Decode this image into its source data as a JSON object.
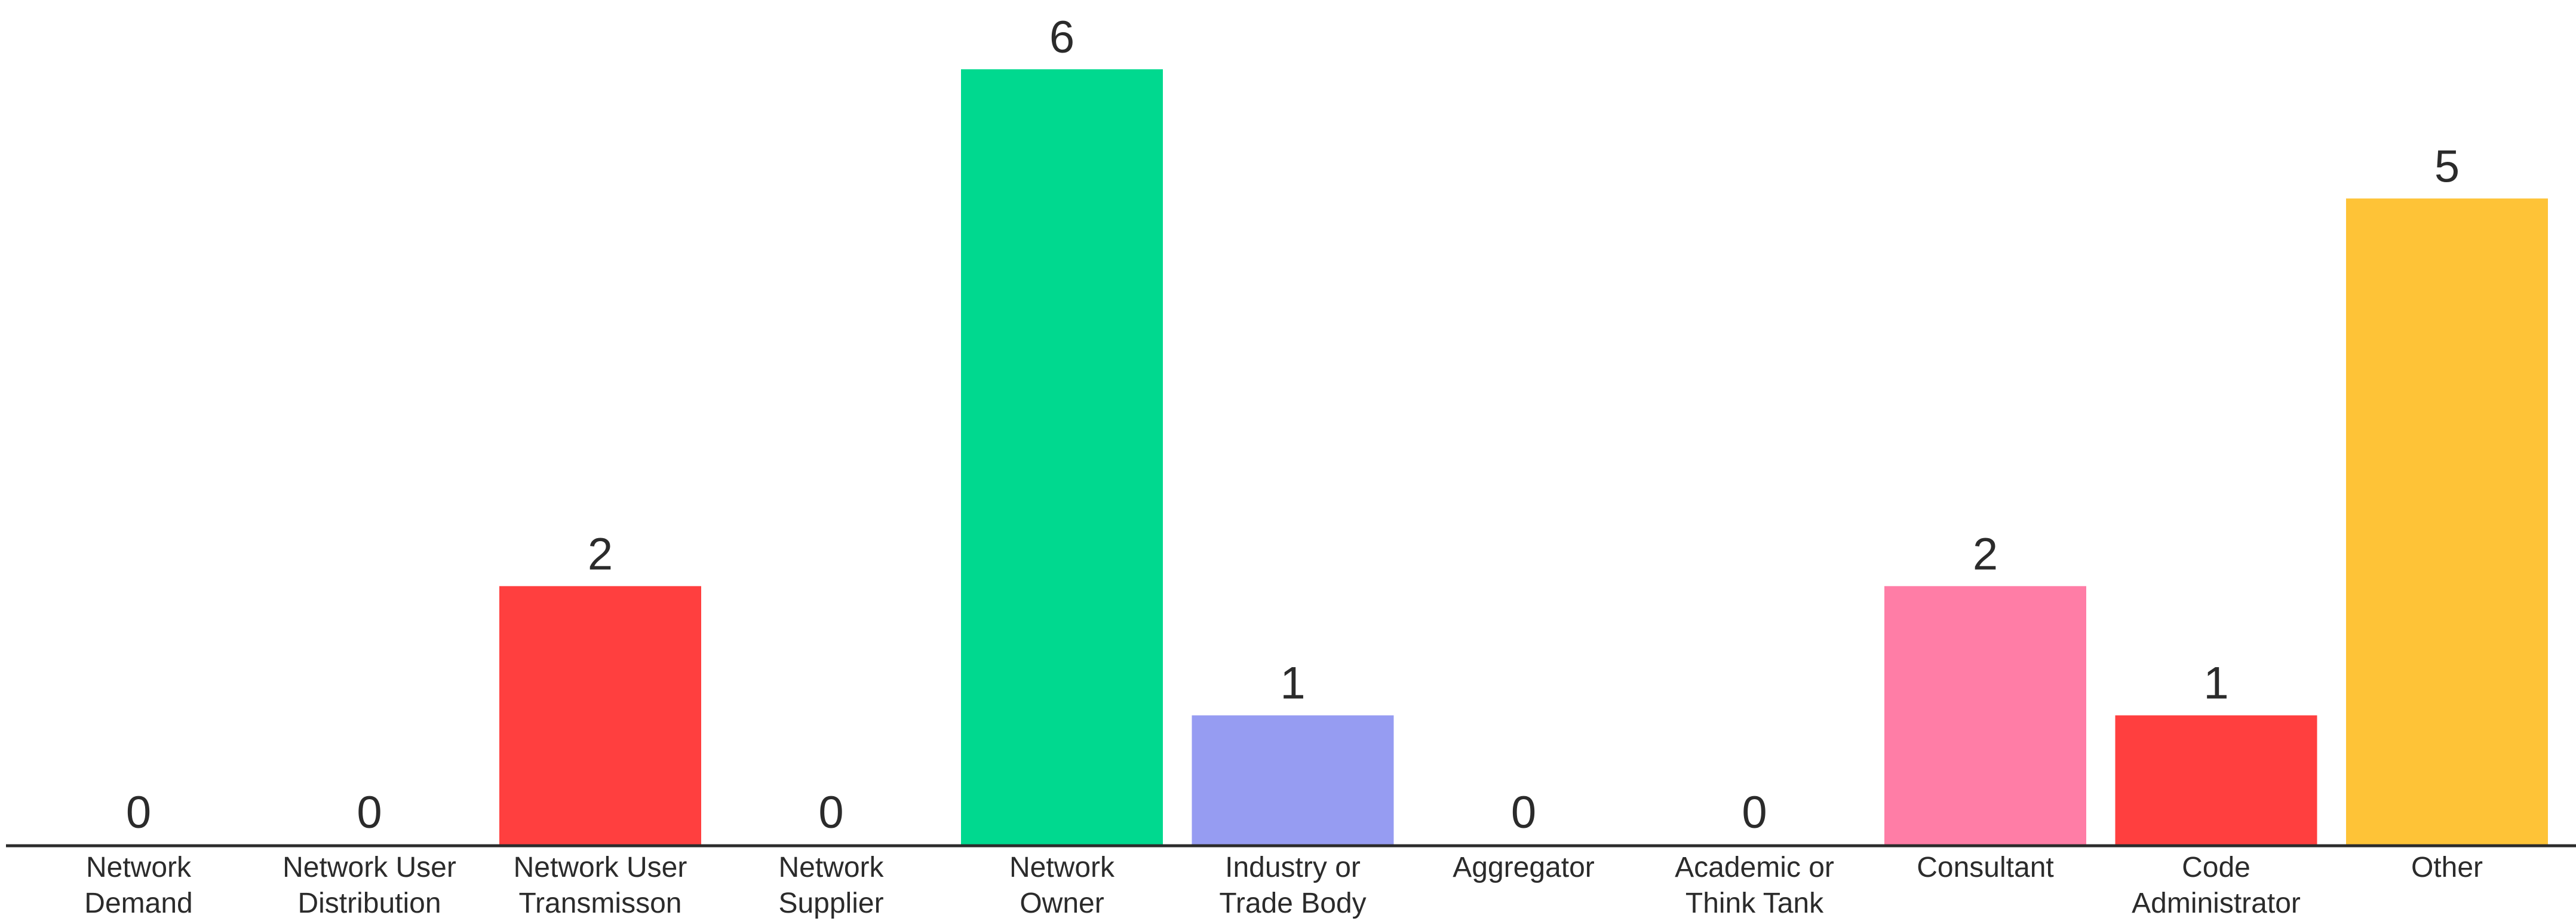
{
  "chart_data": {
    "type": "bar",
    "title": "",
    "xlabel": "",
    "ylabel": "",
    "ylim": [
      0,
      6
    ],
    "grid": false,
    "legend": "none",
    "baseline_color": "#2b2b2b",
    "text_color": "#2b2b2b",
    "categories": [
      [
        "Network",
        "Demand"
      ],
      [
        "Network User",
        "Distribution"
      ],
      [
        "Network User",
        "Transmisson"
      ],
      [
        "Network",
        "Supplier"
      ],
      [
        "Network",
        "Owner"
      ],
      [
        "Industry or",
        "Trade Body"
      ],
      [
        "Aggregator"
      ],
      [
        "Academic or",
        "Think Tank"
      ],
      [
        "Consultant"
      ],
      [
        "Code",
        "Administrator"
      ],
      [
        "Other"
      ]
    ],
    "values": [
      0,
      0,
      2,
      0,
      6,
      1,
      0,
      0,
      2,
      1,
      5
    ],
    "colors": [
      "#ff3f3f",
      "#ff3f3f",
      "#ff3f3f",
      "#ff3f3f",
      "#00d98f",
      "#969cf2",
      "#ff3f3f",
      "#ff3f3f",
      "#ff7da6",
      "#ff3f3f",
      "#fec337"
    ]
  }
}
